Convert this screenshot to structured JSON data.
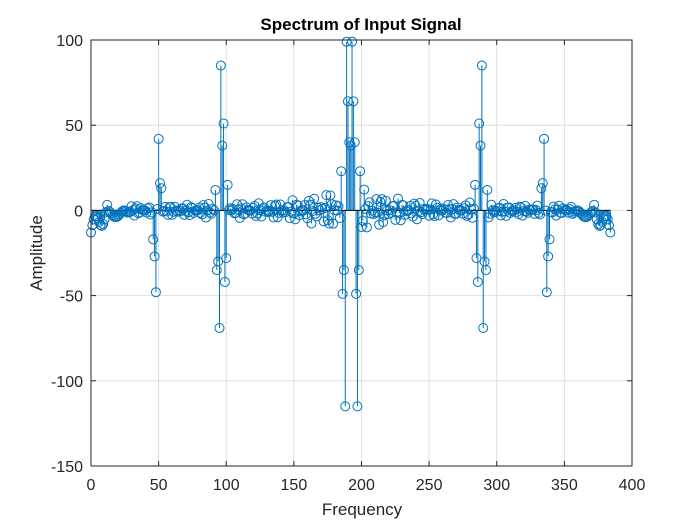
{
  "chart_data": {
    "type": "stem",
    "title": "Spectrum of Input Signal",
    "xlabel": "Frequency",
    "ylabel": "Amplitude",
    "xlim": [
      0,
      400
    ],
    "ylim": [
      -150,
      100
    ],
    "xticks": [
      0,
      50,
      100,
      150,
      200,
      250,
      300,
      350,
      400
    ],
    "yticks": [
      -150,
      -100,
      -50,
      0,
      50,
      100
    ],
    "xtick_labels": [
      "0",
      "50",
      "100",
      "150",
      "200",
      "250",
      "300",
      "350",
      "400"
    ],
    "ytick_labels": [
      "-150",
      "-100",
      "-50",
      "0",
      "50",
      "100"
    ],
    "grid": true,
    "legend": "none",
    "series_color": "#0072bd",
    "n_points": 385,
    "peaks": [
      {
        "x": 48,
        "y": -48
      },
      {
        "x": 50,
        "y": 42
      },
      {
        "x": 51,
        "y": 16
      },
      {
        "x": 52,
        "y": 13
      },
      {
        "x": 47,
        "y": -27
      },
      {
        "x": 46,
        "y": -17
      },
      {
        "x": 93,
        "y": -35
      },
      {
        "x": 94,
        "y": -30
      },
      {
        "x": 95,
        "y": -69
      },
      {
        "x": 96,
        "y": 85
      },
      {
        "x": 97,
        "y": 38
      },
      {
        "x": 98,
        "y": 51
      },
      {
        "x": 99,
        "y": -42
      },
      {
        "x": 100,
        "y": -28
      },
      {
        "x": 92,
        "y": 12
      },
      {
        "x": 101,
        "y": 15
      },
      {
        "x": 185,
        "y": 23
      },
      {
        "x": 187,
        "y": -35
      },
      {
        "x": 188,
        "y": -115
      },
      {
        "x": 189,
        "y": 99
      },
      {
        "x": 190,
        "y": 64
      },
      {
        "x": 191,
        "y": 40
      },
      {
        "x": 192,
        "y": 38
      },
      {
        "x": 193,
        "y": 99
      },
      {
        "x": 194,
        "y": 64
      },
      {
        "x": 195,
        "y": 40
      },
      {
        "x": 196,
        "y": -49
      },
      {
        "x": 197,
        "y": -115
      },
      {
        "x": 198,
        "y": -35
      },
      {
        "x": 199,
        "y": 23
      },
      {
        "x": 186,
        "y": -49
      },
      {
        "x": 286,
        "y": -42
      },
      {
        "x": 287,
        "y": 51
      },
      {
        "x": 288,
        "y": 38
      },
      {
        "x": 289,
        "y": 85
      },
      {
        "x": 290,
        "y": -69
      },
      {
        "x": 291,
        "y": -30
      },
      {
        "x": 292,
        "y": -35
      },
      {
        "x": 285,
        "y": -28
      },
      {
        "x": 293,
        "y": 12
      },
      {
        "x": 284,
        "y": 15
      },
      {
        "x": 333,
        "y": 13
      },
      {
        "x": 334,
        "y": 16
      },
      {
        "x": 335,
        "y": 42
      },
      {
        "x": 337,
        "y": -48
      },
      {
        "x": 338,
        "y": -27
      },
      {
        "x": 339,
        "y": -17
      }
    ]
  }
}
